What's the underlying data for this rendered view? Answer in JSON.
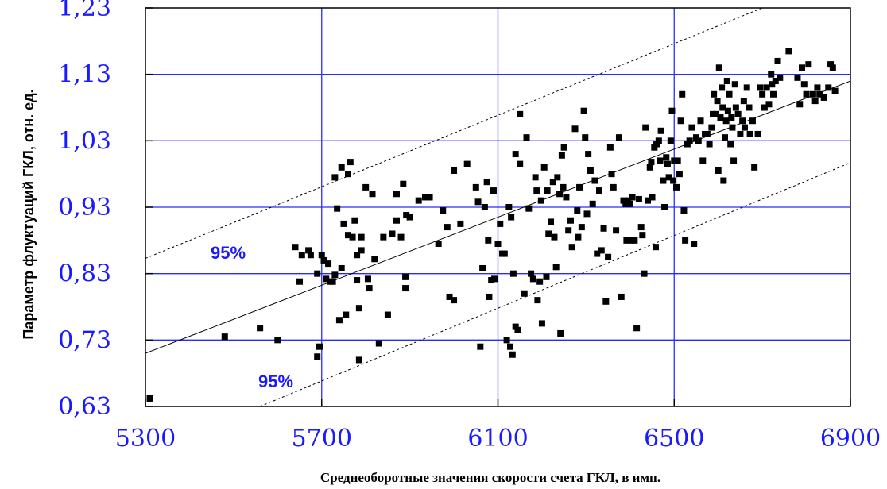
{
  "chart_data": {
    "type": "scatter",
    "xlabel": "Среднеоборотные  значения  скорости  счета ГКЛ,   в имп.",
    "ylabel": "Параметр флуктуаций ГКЛ, отн. ед.",
    "xlim": [
      5300,
      6900
    ],
    "ylim": [
      0.63,
      1.23
    ],
    "xticks": [
      "5300",
      "5700",
      "6100",
      "6500",
      "6900"
    ],
    "yticks": [
      "0,63",
      "0,73",
      "0,83",
      "0,93",
      "1,03",
      "1,13",
      "1,23"
    ],
    "grid": true,
    "regression": {
      "x": [
        5300,
        6900
      ],
      "y": [
        0.71,
        1.12
      ]
    },
    "upper_band": {
      "x": [
        5300,
        6700
      ],
      "y": [
        0.853,
        1.23
      ],
      "label": "95%"
    },
    "lower_band": {
      "x": [
        5560,
        6900
      ],
      "y": [
        0.63,
        0.997
      ],
      "label": "95%"
    },
    "points": [
      [
        5310,
        0.642
      ],
      [
        5480,
        0.735
      ],
      [
        5560,
        0.748
      ],
      [
        5600,
        0.73
      ],
      [
        5640,
        0.87
      ],
      [
        5650,
        0.818
      ],
      [
        5655,
        0.858
      ],
      [
        5670,
        0.865
      ],
      [
        5675,
        0.858
      ],
      [
        5690,
        0.83
      ],
      [
        5690,
        0.705
      ],
      [
        5695,
        0.72
      ],
      [
        5700,
        0.858
      ],
      [
        5705,
        0.85
      ],
      [
        5710,
        0.822
      ],
      [
        5715,
        0.845
      ],
      [
        5720,
        0.818
      ],
      [
        5725,
        0.818
      ],
      [
        5730,
        0.828
      ],
      [
        5730,
        0.975
      ],
      [
        5735,
        0.928
      ],
      [
        5740,
        0.76
      ],
      [
        5745,
        0.838
      ],
      [
        5745,
        0.99
      ],
      [
        5750,
        0.905
      ],
      [
        5755,
        0.768
      ],
      [
        5760,
        0.888
      ],
      [
        5760,
        0.98
      ],
      [
        5765,
        0.998
      ],
      [
        5770,
        0.885
      ],
      [
        5775,
        0.91
      ],
      [
        5780,
        0.858
      ],
      [
        5780,
        0.82
      ],
      [
        5785,
        0.7
      ],
      [
        5785,
        0.778
      ],
      [
        5790,
        0.885
      ],
      [
        5790,
        0.865
      ],
      [
        5800,
        0.96
      ],
      [
        5805,
        0.822
      ],
      [
        5808,
        0.808
      ],
      [
        5815,
        0.95
      ],
      [
        5820,
        0.852
      ],
      [
        5830,
        0.725
      ],
      [
        5840,
        0.885
      ],
      [
        5850,
        0.768
      ],
      [
        5860,
        0.89
      ],
      [
        5870,
        0.95
      ],
      [
        5870,
        0.91
      ],
      [
        5880,
        0.885
      ],
      [
        5885,
        0.965
      ],
      [
        5890,
        0.825
      ],
      [
        5890,
        0.808
      ],
      [
        5892,
        0.918
      ],
      [
        5900,
        0.915
      ],
      [
        5920,
        0.94
      ],
      [
        5935,
        0.945
      ],
      [
        5945,
        0.945
      ],
      [
        5965,
        0.875
      ],
      [
        5975,
        0.925
      ],
      [
        5985,
        0.9
      ],
      [
        5990,
        0.795
      ],
      [
        6000,
        0.985
      ],
      [
        6000,
        0.79
      ],
      [
        6015,
        0.905
      ],
      [
        6030,
        0.995
      ],
      [
        6050,
        0.96
      ],
      [
        6055,
        0.938
      ],
      [
        6060,
        0.72
      ],
      [
        6065,
        0.838
      ],
      [
        6070,
        0.93
      ],
      [
        6075,
        0.968
      ],
      [
        6078,
        0.88
      ],
      [
        6080,
        0.795
      ],
      [
        6085,
        0.82
      ],
      [
        6090,
        0.955
      ],
      [
        6092,
        0.822
      ],
      [
        6100,
        0.875
      ],
      [
        6105,
        0.905
      ],
      [
        6110,
        0.86
      ],
      [
        6115,
        0.86
      ],
      [
        6120,
        0.73
      ],
      [
        6125,
        0.93
      ],
      [
        6128,
        0.72
      ],
      [
        6130,
        0.915
      ],
      [
        6133,
        0.708
      ],
      [
        6135,
        0.83
      ],
      [
        6140,
        1.01
      ],
      [
        6140,
        0.75
      ],
      [
        6145,
        0.745
      ],
      [
        6150,
        1.07
      ],
      [
        6150,
        0.995
      ],
      [
        6160,
        0.8
      ],
      [
        6165,
        1.035
      ],
      [
        6170,
        0.928
      ],
      [
        6175,
        0.83
      ],
      [
        6180,
        0.822
      ],
      [
        6185,
        0.975
      ],
      [
        6188,
        0.955
      ],
      [
        6190,
        0.79
      ],
      [
        6195,
        0.818
      ],
      [
        6198,
        0.94
      ],
      [
        6200,
        0.755
      ],
      [
        6205,
        0.99
      ],
      [
        6210,
        0.825
      ],
      [
        6212,
        0.955
      ],
      [
        6215,
        0.89
      ],
      [
        6220,
        0.908
      ],
      [
        6225,
        0.968
      ],
      [
        6228,
        0.885
      ],
      [
        6232,
        0.84
      ],
      [
        6235,
        0.975
      ],
      [
        6240,
        0.95
      ],
      [
        6242,
        0.74
      ],
      [
        6245,
        1.008
      ],
      [
        6248,
        0.96
      ],
      [
        6250,
        1.02
      ],
      [
        6255,
        0.945
      ],
      [
        6260,
        0.895
      ],
      [
        6265,
        0.91
      ],
      [
        6268,
        0.87
      ],
      [
        6275,
        1.048
      ],
      [
        6280,
        0.925
      ],
      [
        6282,
        0.885
      ],
      [
        6285,
        0.96
      ],
      [
        6290,
        0.9
      ],
      [
        6295,
        1.075
      ],
      [
        6298,
        1.035
      ],
      [
        6302,
        0.92
      ],
      [
        6305,
        1.01
      ],
      [
        6310,
        0.985
      ],
      [
        6315,
        0.935
      ],
      [
        6320,
        0.97
      ],
      [
        6325,
        0.86
      ],
      [
        6330,
        0.955
      ],
      [
        6335,
        0.865
      ],
      [
        6340,
        0.898
      ],
      [
        6345,
        0.788
      ],
      [
        6350,
        0.855
      ],
      [
        6355,
        1.02
      ],
      [
        6358,
        0.98
      ],
      [
        6362,
        0.96
      ],
      [
        6368,
        0.895
      ],
      [
        6375,
        1.035
      ],
      [
        6380,
        0.795
      ],
      [
        6385,
        0.94
      ],
      [
        6390,
        0.935
      ],
      [
        6392,
        0.88
      ],
      [
        6395,
        0.94
      ],
      [
        6400,
        0.935
      ],
      [
        6402,
        0.88
      ],
      [
        6405,
        0.945
      ],
      [
        6410,
        0.88
      ],
      [
        6415,
        0.748
      ],
      [
        6420,
        0.942
      ],
      [
        6425,
        0.9
      ],
      [
        6428,
        0.888
      ],
      [
        6432,
        0.83
      ],
      [
        6435,
        1.05
      ],
      [
        6440,
        0.94
      ],
      [
        6445,
        0.99
      ],
      [
        6448,
        0.998
      ],
      [
        6450,
        0.945
      ],
      [
        6455,
        1.02
      ],
      [
        6458,
        0.87
      ],
      [
        6460,
        1.025
      ],
      [
        6465,
        1.03
      ],
      [
        6468,
        1.0
      ],
      [
        6470,
        1.045
      ],
      [
        6475,
        0.97
      ],
      [
        6478,
        0.93
      ],
      [
        6482,
        1.005
      ],
      [
        6485,
        0.995
      ],
      [
        6488,
        0.975
      ],
      [
        6492,
        1.03
      ],
      [
        6495,
        1.075
      ],
      [
        6498,
        0.97
      ],
      [
        6500,
        1.0
      ],
      [
        6505,
        0.96
      ],
      [
        6508,
        1.0
      ],
      [
        6512,
        0.98
      ],
      [
        6515,
        1.06
      ],
      [
        6518,
        1.1
      ],
      [
        6522,
        0.925
      ],
      [
        6525,
        0.88
      ],
      [
        6530,
        1.025
      ],
      [
        6535,
        1.03
      ],
      [
        6540,
        1.05
      ],
      [
        6545,
        0.875
      ],
      [
        6550,
        1.035
      ],
      [
        6555,
        1.03
      ],
      [
        6560,
        1.06
      ],
      [
        6565,
        1.0
      ],
      [
        6570,
        1.04
      ],
      [
        6575,
        1.04
      ],
      [
        6580,
        1.025
      ],
      [
        6585,
        1.05
      ],
      [
        6588,
        1.07
      ],
      [
        6590,
        1.1
      ],
      [
        6595,
        1.07
      ],
      [
        6598,
        1.09
      ],
      [
        6600,
        0.985
      ],
      [
        6602,
        1.14
      ],
      [
        6605,
        1.065
      ],
      [
        6608,
        1.11
      ],
      [
        6610,
        1.08
      ],
      [
        6612,
        0.97
      ],
      [
        6615,
        1.035
      ],
      [
        6618,
        1.06
      ],
      [
        6620,
        1.12
      ],
      [
        6622,
        1.075
      ],
      [
        6625,
        1.1
      ],
      [
        6628,
        1.025
      ],
      [
        6630,
        1.065
      ],
      [
        6632,
        1.05
      ],
      [
        6635,
        1.0
      ],
      [
        6638,
        1.115
      ],
      [
        6640,
        1.08
      ],
      [
        6645,
        1.07
      ],
      [
        6650,
        1.04
      ],
      [
        6655,
        1.06
      ],
      [
        6658,
        1.09
      ],
      [
        6660,
        1.05
      ],
      [
        6665,
        1.11
      ],
      [
        6670,
        1.08
      ],
      [
        6672,
        1.04
      ],
      [
        6678,
        1.06
      ],
      [
        6682,
        0.99
      ],
      [
        6690,
        1.04
      ],
      [
        6695,
        1.11
      ],
      [
        6700,
        1.1
      ],
      [
        6705,
        1.08
      ],
      [
        6710,
        1.11
      ],
      [
        6715,
        1.085
      ],
      [
        6720,
        1.13
      ],
      [
        6722,
        1.115
      ],
      [
        6725,
        1.1
      ],
      [
        6730,
        1.12
      ],
      [
        6735,
        1.15
      ],
      [
        6740,
        1.125
      ],
      [
        6760,
        1.165
      ],
      [
        6780,
        1.125
      ],
      [
        6785,
        1.085
      ],
      [
        6790,
        1.14
      ],
      [
        6795,
        1.115
      ],
      [
        6800,
        1.1
      ],
      [
        6805,
        1.145
      ],
      [
        6815,
        1.1
      ],
      [
        6820,
        1.09
      ],
      [
        6825,
        1.11
      ],
      [
        6830,
        1.1
      ],
      [
        6840,
        1.095
      ],
      [
        6850,
        1.11
      ],
      [
        6855,
        1.145
      ],
      [
        6860,
        1.14
      ],
      [
        6865,
        1.105
      ]
    ]
  }
}
